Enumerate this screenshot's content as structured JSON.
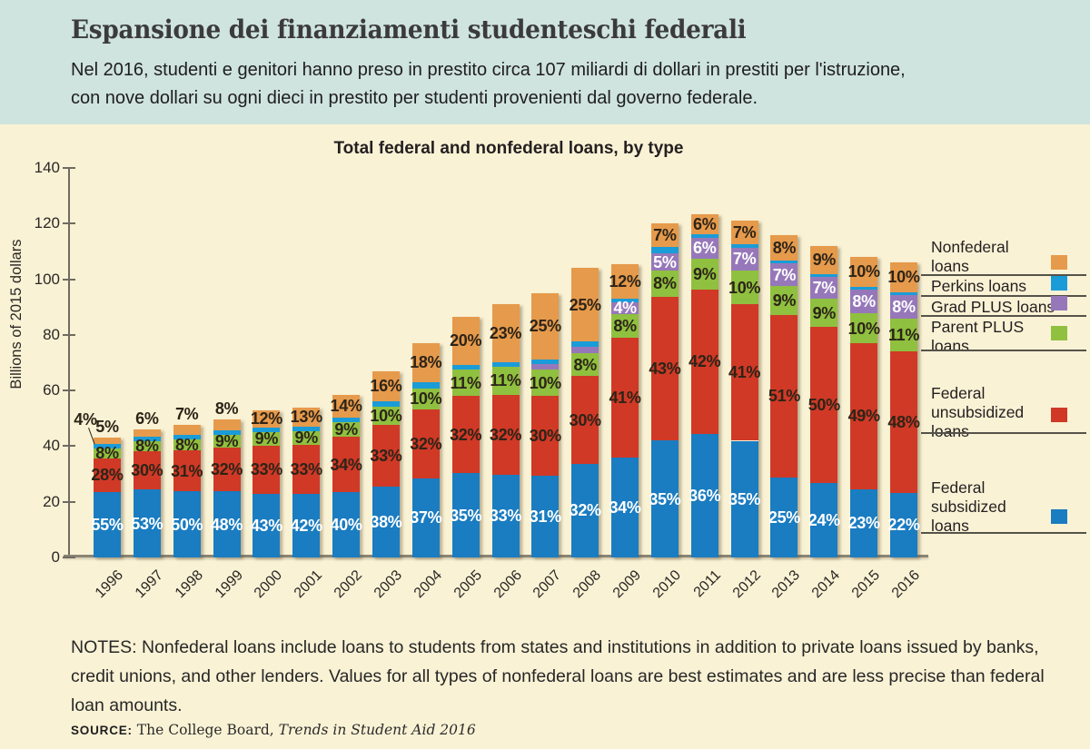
{
  "header": {
    "title": "Espansione dei finanziamenti studenteschi federali",
    "subtitle_line1": "Nel 2016, studenti e genitori hanno preso in prestito circa 107 miliardi di dollari in prestiti per l'istruzione,",
    "subtitle_line2": "con nove dollari su ogni dieci in prestito per studenti provenienti dal governo federale."
  },
  "chart_data": {
    "type": "bar",
    "subtype": "stacked-percent-labels",
    "title": "Total federal and nonfederal loans, by type",
    "ylabel": "Billions of 2015 dollars",
    "ylim": [
      0,
      140
    ],
    "yticks": [
      0,
      20,
      40,
      60,
      80,
      100,
      120,
      140
    ],
    "grid": false,
    "legend_position": "right",
    "colors": {
      "background": "#faf2d5",
      "header_band": "#cfe3df",
      "subsidized": "#1a7cc1",
      "unsubsidized": "#d03926",
      "parent_plus": "#8fc03f",
      "grad_plus": "#9678ba",
      "perkins": "#1a9cd8",
      "nonfederal": "#e69a4b",
      "dark_label": "#2d2418",
      "white_label": "#ffffff"
    },
    "stack_order_bottom_to_top": [
      "subsidized",
      "unsubsidized",
      "parent_plus",
      "grad_plus",
      "perkins",
      "nonfederal"
    ],
    "label_style": {
      "subsidized": "white",
      "unsubsidized": "dark",
      "parent_plus": "dark",
      "grad_plus": "white",
      "perkins": "dark",
      "nonfederal": "dark"
    },
    "years": [
      "1996",
      "1997",
      "1998",
      "1999",
      "2000",
      "2001",
      "2002",
      "2003",
      "2004",
      "2005",
      "2006",
      "2007",
      "2008",
      "2009",
      "2010",
      "2011",
      "2012",
      "2013",
      "2014",
      "2015",
      "2016"
    ],
    "totals_billions": [
      43,
      46,
      47.5,
      49.5,
      53,
      54,
      58.5,
      67,
      77,
      86.5,
      91,
      95,
      104,
      105.5,
      120,
      123.5,
      121,
      116,
      112,
      108,
      106
    ],
    "series": [
      {
        "name": "subsidized",
        "pct": [
          55,
          53,
          50,
          48,
          43,
          42,
          40,
          38,
          37,
          35,
          33,
          31,
          32,
          34,
          35,
          36,
          35,
          25,
          24,
          23,
          22
        ],
        "labels": [
          "55%",
          "53%",
          "50%",
          "48%",
          "43%",
          "42%",
          "40%",
          "38%",
          "37%",
          "35%",
          "33%",
          "31%",
          "32%",
          "34%",
          "35%",
          "36%",
          "35%",
          "25%",
          "24%",
          "23%",
          "22%"
        ]
      },
      {
        "name": "unsubsidized",
        "pct": [
          28,
          30,
          31,
          32,
          33,
          33,
          34,
          33,
          32,
          32,
          32,
          30,
          30,
          41,
          43,
          42,
          41,
          51,
          50,
          49,
          48
        ],
        "labels": [
          "28%",
          "30%",
          "31%",
          "32%",
          "33%",
          "33%",
          "34%",
          "33%",
          "32%",
          "32%",
          "32%",
          "30%",
          "30%",
          "41%",
          "43%",
          "42%",
          "41%",
          "51%",
          "50%",
          "49%",
          "48%"
        ]
      },
      {
        "name": "parent_plus",
        "pct": [
          8,
          8,
          8,
          9,
          9,
          9,
          9,
          10,
          10,
          11,
          11,
          10,
          8,
          8,
          8,
          9,
          10,
          9,
          9,
          10,
          11
        ],
        "labels": [
          "8%",
          "8%",
          "8%",
          "9%",
          "9%",
          "9%",
          "9%",
          "10%",
          "10%",
          "11%",
          "11%",
          "10%",
          "8%",
          "8%",
          "8%",
          "9%",
          "10%",
          "9%",
          "9%",
          "10%",
          "11%"
        ]
      },
      {
        "name": "grad_plus",
        "pct": [
          0,
          0,
          0,
          0,
          0,
          0,
          0,
          0,
          0,
          0,
          0,
          2,
          2,
          4,
          5,
          6,
          7,
          7,
          7,
          8,
          8
        ],
        "labels": [
          null,
          null,
          null,
          null,
          null,
          null,
          null,
          null,
          null,
          null,
          null,
          null,
          null,
          "4%",
          "5%",
          "6%",
          "7%",
          "7%",
          "7%",
          "8%",
          "8%"
        ]
      },
      {
        "name": "perkins",
        "pct": [
          4,
          3,
          4,
          3,
          3,
          3,
          3,
          3,
          3,
          2,
          2,
          2,
          2,
          1,
          2,
          1,
          1,
          1,
          1,
          1,
          1
        ],
        "labels": [
          null,
          null,
          null,
          null,
          null,
          null,
          null,
          null,
          null,
          null,
          null,
          null,
          null,
          null,
          null,
          null,
          null,
          null,
          null,
          null,
          null
        ]
      },
      {
        "name": "nonfederal",
        "pct": [
          5,
          6,
          7,
          8,
          12,
          13,
          14,
          16,
          18,
          20,
          23,
          25,
          25,
          12,
          7,
          6,
          7,
          8,
          9,
          10,
          10
        ],
        "labels": [
          "5%",
          "6%",
          "7%",
          "8%",
          "12%",
          "13%",
          "14%",
          "16%",
          "18%",
          "20%",
          "23%",
          "25%",
          "25%",
          "12%",
          "7%",
          "6%",
          "7%",
          "8%",
          "9%",
          "10%",
          "10%"
        ],
        "label_above_bar": [
          true,
          true,
          true,
          true,
          false,
          false,
          false,
          false,
          false,
          false,
          false,
          false,
          false,
          false,
          false,
          false,
          false,
          false,
          false,
          false,
          false
        ]
      }
    ],
    "annotation": {
      "text": "4%",
      "refers_to": "perkins-1996"
    },
    "legend": [
      {
        "key": "nonfederal",
        "lines": [
          "Nonfederal",
          "loans"
        ]
      },
      {
        "key": "perkins",
        "lines": [
          "Perkins loans"
        ]
      },
      {
        "key": "grad_plus",
        "lines": [
          "Grad PLUS loans"
        ]
      },
      {
        "key": "parent_plus",
        "lines": [
          "Parent PLUS",
          "loans"
        ]
      },
      {
        "key": "unsubsidized",
        "lines": [
          "Federal",
          "unsubsidized",
          "loans"
        ]
      },
      {
        "key": "subsidized",
        "lines": [
          "Federal",
          "subsidized",
          "loans"
        ]
      }
    ]
  },
  "notes": "NOTES: Nonfederal loans include loans to students from states and institutions in addition to private loans issued by banks, credit unions, and other lenders. Values for all types of nonfederal loans are best estimates and are less precise than federal loan amounts.",
  "source": {
    "label": "SOURCE:",
    "publisher": " The College Board, ",
    "work": "Trends in Student Aid 2016"
  }
}
